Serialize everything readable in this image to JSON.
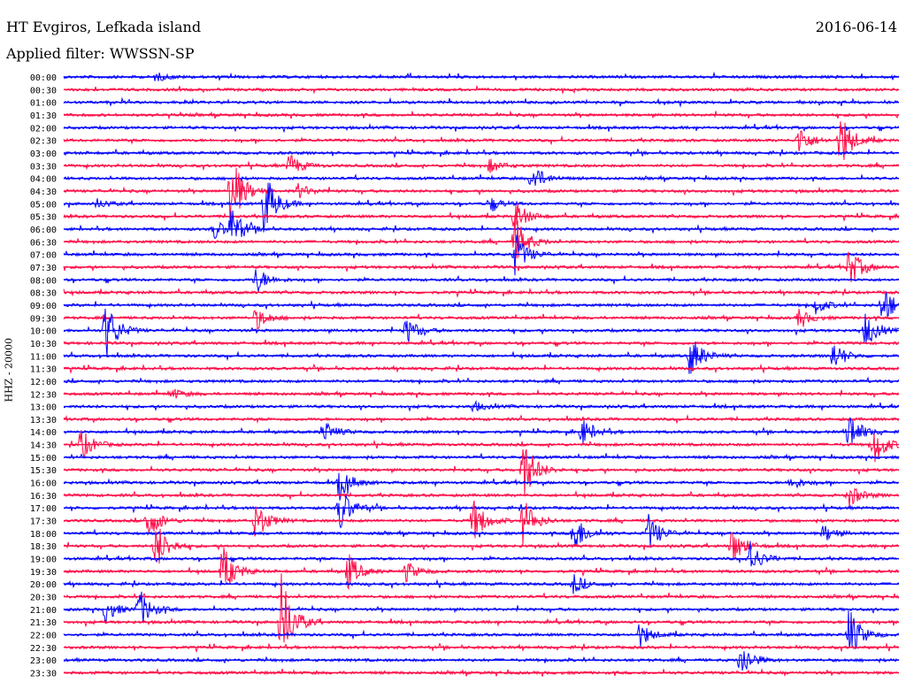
{
  "header": {
    "station": "HT Evgiros, Lefkada island",
    "date": "2016-06-14",
    "filter": "Applied filter: WWSSN-SP"
  },
  "chart_data": {
    "type": "line",
    "title": "HT Evgiros, Lefkada island",
    "ylabel": "HHZ - 20000",
    "row_colors": [
      "#0000ff",
      "#ff0a46"
    ],
    "rows": [
      "00:00",
      "00:30",
      "01:00",
      "01:30",
      "02:00",
      "02:30",
      "03:00",
      "03:30",
      "04:00",
      "04:30",
      "05:00",
      "05:30",
      "06:00",
      "06:30",
      "07:00",
      "07:30",
      "08:00",
      "08:30",
      "09:00",
      "09:30",
      "10:00",
      "10:30",
      "11:00",
      "11:30",
      "12:00",
      "12:30",
      "13:00",
      "13:30",
      "14:00",
      "14:30",
      "15:00",
      "15:30",
      "16:00",
      "16:30",
      "17:00",
      "17:30",
      "18:00",
      "18:30",
      "19:00",
      "19:30",
      "20:00",
      "20:30",
      "21:00",
      "21:30",
      "22:00",
      "22:30",
      "23:00",
      "23:30"
    ],
    "events": [
      {
        "row": "00:00",
        "t": 0.11,
        "amp": 5
      },
      {
        "row": "02:30",
        "t": 0.88,
        "amp": 18
      },
      {
        "row": "02:30",
        "t": 0.93,
        "amp": 34
      },
      {
        "row": "03:30",
        "t": 0.27,
        "amp": 14
      },
      {
        "row": "03:30",
        "t": 0.51,
        "amp": 8
      },
      {
        "row": "04:00",
        "t": 0.56,
        "amp": 18
      },
      {
        "row": "04:30",
        "t": 0.2,
        "amp": 48
      },
      {
        "row": "04:30",
        "t": 0.28,
        "amp": 9
      },
      {
        "row": "05:00",
        "t": 0.04,
        "amp": 5
      },
      {
        "row": "05:00",
        "t": 0.24,
        "amp": 40
      },
      {
        "row": "05:00",
        "t": 0.51,
        "amp": 8
      },
      {
        "row": "05:30",
        "t": 0.54,
        "amp": 20
      },
      {
        "row": "06:00",
        "t": 0.18,
        "amp": 12
      },
      {
        "row": "06:00",
        "t": 0.2,
        "amp": 24
      },
      {
        "row": "06:30",
        "t": 0.54,
        "amp": 30
      },
      {
        "row": "07:00",
        "t": 0.54,
        "amp": 26
      },
      {
        "row": "07:30",
        "t": 0.94,
        "amp": 24
      },
      {
        "row": "08:00",
        "t": 0.23,
        "amp": 16
      },
      {
        "row": "09:00",
        "t": 0.98,
        "amp": 26
      },
      {
        "row": "09:00",
        "t": 0.9,
        "amp": 10
      },
      {
        "row": "09:30",
        "t": 0.23,
        "amp": 14
      },
      {
        "row": "09:30",
        "t": 0.88,
        "amp": 10
      },
      {
        "row": "10:00",
        "t": 0.05,
        "amp": 36
      },
      {
        "row": "10:00",
        "t": 0.41,
        "amp": 16
      },
      {
        "row": "10:00",
        "t": 0.96,
        "amp": 20
      },
      {
        "row": "11:00",
        "t": 0.75,
        "amp": 26
      },
      {
        "row": "11:00",
        "t": 0.92,
        "amp": 18
      },
      {
        "row": "12:30",
        "t": 0.13,
        "amp": 6
      },
      {
        "row": "13:00",
        "t": 0.49,
        "amp": 6
      },
      {
        "row": "14:00",
        "t": 0.31,
        "amp": 14
      },
      {
        "row": "14:00",
        "t": 0.62,
        "amp": 16
      },
      {
        "row": "14:00",
        "t": 0.94,
        "amp": 24
      },
      {
        "row": "14:30",
        "t": 0.02,
        "amp": 20
      },
      {
        "row": "14:30",
        "t": 0.97,
        "amp": 24
      },
      {
        "row": "15:30",
        "t": 0.55,
        "amp": 40
      },
      {
        "row": "16:00",
        "t": 0.33,
        "amp": 20
      },
      {
        "row": "16:00",
        "t": 0.87,
        "amp": 8
      },
      {
        "row": "16:30",
        "t": 0.94,
        "amp": 14
      },
      {
        "row": "17:00",
        "t": 0.33,
        "amp": 28
      },
      {
        "row": "17:30",
        "t": 0.1,
        "amp": 22
      },
      {
        "row": "17:30",
        "t": 0.23,
        "amp": 24
      },
      {
        "row": "17:30",
        "t": 0.49,
        "amp": 26
      },
      {
        "row": "17:30",
        "t": 0.55,
        "amp": 28
      },
      {
        "row": "18:00",
        "t": 0.61,
        "amp": 26
      },
      {
        "row": "18:00",
        "t": 0.7,
        "amp": 22
      },
      {
        "row": "18:00",
        "t": 0.91,
        "amp": 10
      },
      {
        "row": "18:30",
        "t": 0.11,
        "amp": 30
      },
      {
        "row": "18:30",
        "t": 0.8,
        "amp": 22
      },
      {
        "row": "19:00",
        "t": 0.82,
        "amp": 22
      },
      {
        "row": "19:30",
        "t": 0.19,
        "amp": 30
      },
      {
        "row": "19:30",
        "t": 0.34,
        "amp": 22
      },
      {
        "row": "19:30",
        "t": 0.41,
        "amp": 12
      },
      {
        "row": "20:00",
        "t": 0.61,
        "amp": 12
      },
      {
        "row": "21:00",
        "t": 0.05,
        "amp": 14
      },
      {
        "row": "21:00",
        "t": 0.09,
        "amp": 24
      },
      {
        "row": "21:30",
        "t": 0.26,
        "amp": 58
      },
      {
        "row": "22:00",
        "t": 0.69,
        "amp": 14
      },
      {
        "row": "22:00",
        "t": 0.94,
        "amp": 32
      },
      {
        "row": "23:00",
        "t": 0.81,
        "amp": 22
      }
    ]
  }
}
